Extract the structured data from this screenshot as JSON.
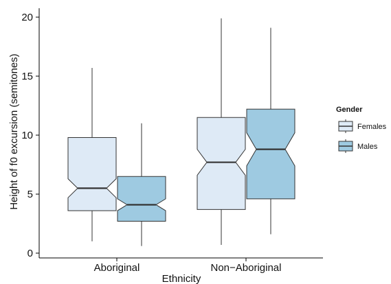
{
  "chart_data": {
    "type": "boxplot",
    "xlabel": "Ethnicity",
    "ylabel": "Height of f0 excursion (semitones)",
    "ylim": [
      0,
      20
    ],
    "yticks": [
      0,
      5,
      10,
      15,
      20
    ],
    "categories": [
      "Aboriginal",
      "Non−Aboriginal"
    ],
    "legend": {
      "title": "Gender",
      "position": "right"
    },
    "series": [
      {
        "name": "Females",
        "color": "#deeaf6",
        "boxes": [
          {
            "min": 1.0,
            "q1": 3.6,
            "median": 5.5,
            "q3": 9.8,
            "max": 15.7,
            "notch_low": 4.7,
            "notch_high": 6.3
          },
          {
            "min": 0.7,
            "q1": 3.7,
            "median": 7.7,
            "q3": 11.5,
            "max": 19.9,
            "notch_low": 6.6,
            "notch_high": 8.8
          }
        ]
      },
      {
        "name": "Males",
        "color": "#9ecae1",
        "boxes": [
          {
            "min": 0.6,
            "q1": 2.7,
            "median": 4.1,
            "q3": 6.5,
            "max": 11.0,
            "notch_low": 3.6,
            "notch_high": 4.6
          },
          {
            "min": 1.6,
            "q1": 4.6,
            "median": 8.8,
            "q3": 12.2,
            "max": 19.1,
            "notch_low": 7.4,
            "notch_high": 10.2
          }
        ]
      }
    ]
  }
}
